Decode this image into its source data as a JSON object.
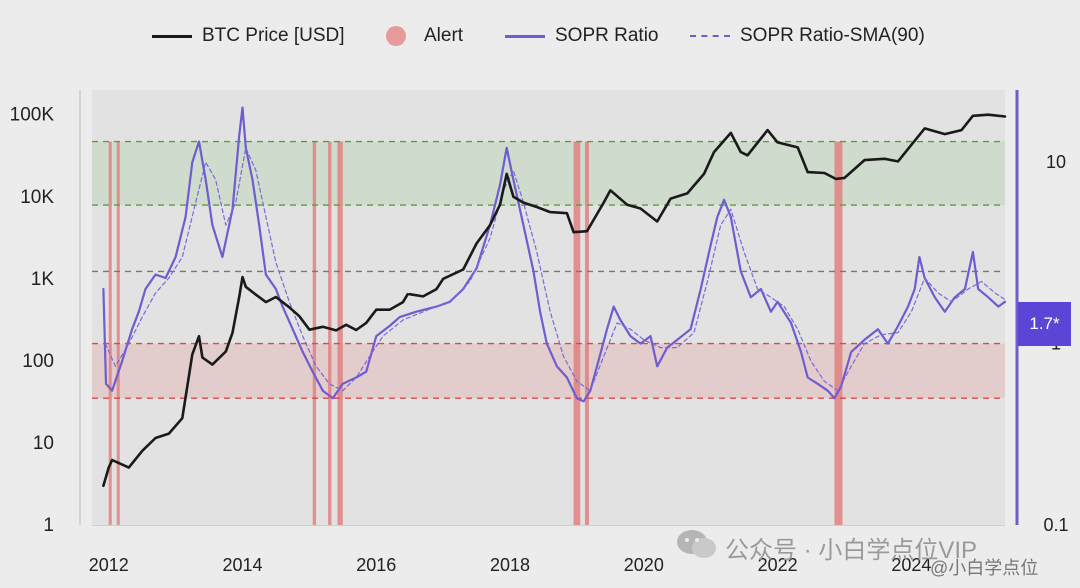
{
  "chart_data": {
    "type": "line",
    "legend": {
      "btc": "BTC Price [USD]",
      "alert": "Alert",
      "sopr": "SOPR Ratio",
      "sma": "SOPR Ratio-SMA(90)",
      "placement": "top"
    },
    "x_ticks": [
      "2012",
      "2014",
      "2016",
      "2018",
      "2020",
      "2022",
      "2024"
    ],
    "x_range": [
      2011.75,
      2025.4
    ],
    "y_left": {
      "scale": "log",
      "range": [
        1,
        200000
      ],
      "ticks": [
        1,
        10,
        100,
        1000,
        10000,
        100000
      ],
      "tick_labels": [
        "1",
        "10",
        "100",
        "1K",
        "10K",
        "100K"
      ]
    },
    "y_right": {
      "scale": "log",
      "range": [
        0.1,
        25
      ],
      "ticks": [
        0.1,
        1,
        10
      ],
      "tick_labels": [
        "0.1",
        "1",
        "10"
      ]
    },
    "reference_lines_right": [
      {
        "value": 13,
        "color": "green"
      },
      {
        "value": 5.8,
        "color": "green"
      },
      {
        "value": 2.5,
        "color": "gray"
      },
      {
        "value": 1.0,
        "color": "red"
      },
      {
        "value": 0.5,
        "color": "red"
      }
    ],
    "bands_right": [
      {
        "from": 5.8,
        "to": 13,
        "color": "green"
      },
      {
        "from": 0.5,
        "to": 1.0,
        "color": "red"
      }
    ],
    "current_value_label": "1.7*",
    "series": [
      {
        "name": "BTC Price [USD]",
        "axis": "left",
        "color": "#1a1a1a",
        "points": [
          [
            2011.92,
            3
          ],
          [
            2012.0,
            5
          ],
          [
            2012.05,
            6.2
          ],
          [
            2012.3,
            5
          ],
          [
            2012.5,
            8
          ],
          [
            2012.7,
            11.5
          ],
          [
            2012.9,
            13
          ],
          [
            2013.1,
            20
          ],
          [
            2013.25,
            120
          ],
          [
            2013.35,
            200
          ],
          [
            2013.4,
            110
          ],
          [
            2013.55,
            90
          ],
          [
            2013.75,
            130
          ],
          [
            2013.85,
            220
          ],
          [
            2013.95,
            600
          ],
          [
            2014.0,
            1050
          ],
          [
            2014.05,
            800
          ],
          [
            2014.2,
            640
          ],
          [
            2014.35,
            520
          ],
          [
            2014.5,
            600
          ],
          [
            2014.7,
            450
          ],
          [
            2014.85,
            350
          ],
          [
            2015.0,
            240
          ],
          [
            2015.2,
            260
          ],
          [
            2015.4,
            235
          ],
          [
            2015.55,
            275
          ],
          [
            2015.7,
            238
          ],
          [
            2015.85,
            290
          ],
          [
            2016.0,
            420
          ],
          [
            2016.2,
            420
          ],
          [
            2016.4,
            520
          ],
          [
            2016.47,
            650
          ]
        ]
      },
      {
        "name": "BTC Price [USD]",
        "axis": "left",
        "color": "#1a1a1a",
        "points": [
          [
            2016.5,
            650
          ],
          [
            2016.7,
            610
          ],
          [
            2016.9,
            750
          ],
          [
            2017.0,
            1000
          ],
          [
            2017.3,
            1300
          ],
          [
            2017.5,
            2700
          ],
          [
            2017.7,
            4500
          ],
          [
            2017.85,
            8000
          ],
          [
            2017.95,
            19000
          ],
          [
            2018.05,
            10000
          ],
          [
            2018.2,
            8500
          ],
          [
            2018.4,
            7500
          ],
          [
            2018.6,
            6500
          ],
          [
            2018.85,
            6300
          ],
          [
            2018.95,
            3700
          ],
          [
            2019.15,
            3800
          ],
          [
            2019.4,
            8500
          ],
          [
            2019.5,
            12000
          ],
          [
            2019.75,
            8000
          ],
          [
            2019.95,
            7200
          ],
          [
            2020.2,
            5000
          ],
          [
            2020.4,
            9500
          ],
          [
            2020.65,
            11000
          ],
          [
            2020.9,
            19000
          ],
          [
            2021.05,
            35000
          ],
          [
            2021.3,
            60000
          ],
          [
            2021.45,
            35000
          ],
          [
            2021.55,
            32000
          ],
          [
            2021.85,
            65000
          ],
          [
            2022.0,
            46000
          ],
          [
            2022.3,
            40000
          ],
          [
            2022.45,
            20000
          ],
          [
            2022.7,
            19500
          ],
          [
            2022.87,
            16500
          ],
          [
            2023.0,
            17000
          ],
          [
            2023.3,
            28000
          ],
          [
            2023.6,
            29000
          ],
          [
            2023.8,
            27000
          ],
          [
            2024.0,
            43000
          ],
          [
            2024.2,
            68000
          ],
          [
            2024.5,
            58000
          ],
          [
            2024.75,
            65000
          ],
          [
            2024.92,
            97000
          ],
          [
            2025.15,
            100000
          ],
          [
            2025.4,
            95000
          ]
        ]
      },
      {
        "name": "SOPR Ratio",
        "axis": "right",
        "color": "#6f5ccf",
        "points": [
          [
            2011.92,
            2.0
          ],
          [
            2011.96,
            0.6
          ],
          [
            2012.05,
            0.55
          ],
          [
            2012.2,
            0.8
          ],
          [
            2012.35,
            1.2
          ],
          [
            2012.45,
            1.5
          ],
          [
            2012.55,
            2.0
          ],
          [
            2012.7,
            2.4
          ],
          [
            2012.85,
            2.3
          ],
          [
            2013.0,
            3.0
          ],
          [
            2013.15,
            5
          ],
          [
            2013.25,
            10
          ],
          [
            2013.35,
            13
          ],
          [
            2013.45,
            8
          ],
          [
            2013.55,
            4.5
          ],
          [
            2013.7,
            3.0
          ],
          [
            2013.85,
            5.5
          ],
          [
            2013.95,
            14
          ],
          [
            2014.0,
            20
          ],
          [
            2014.05,
            12
          ],
          [
            2014.15,
            8
          ],
          [
            2014.25,
            4.5
          ],
          [
            2014.35,
            2.4
          ],
          [
            2014.5,
            2.0
          ],
          [
            2014.6,
            1.6
          ],
          [
            2014.75,
            1.2
          ],
          [
            2014.9,
            0.9
          ],
          [
            2015.05,
            0.7
          ],
          [
            2015.2,
            0.55
          ],
          [
            2015.35,
            0.5
          ],
          [
            2015.5,
            0.6
          ],
          [
            2015.7,
            0.65
          ],
          [
            2015.85,
            0.7
          ],
          [
            2016.0,
            1.1
          ],
          [
            2016.2,
            1.25
          ],
          [
            2016.35,
            1.4
          ],
          [
            2016.6,
            1.5
          ],
          [
            2016.9,
            1.6
          ],
          [
            2017.1,
            1.7
          ],
          [
            2017.3,
            2.0
          ],
          [
            2017.5,
            2.6
          ],
          [
            2017.7,
            4.5
          ],
          [
            2017.85,
            7.5
          ],
          [
            2017.95,
            12
          ],
          [
            2018.05,
            8
          ],
          [
            2018.2,
            4.5
          ],
          [
            2018.35,
            2.5
          ],
          [
            2018.45,
            1.5
          ],
          [
            2018.55,
            1.0
          ],
          [
            2018.7,
            0.75
          ],
          [
            2018.85,
            0.65
          ],
          [
            2019.0,
            0.5
          ],
          [
            2019.1,
            0.48
          ],
          [
            2019.2,
            0.55
          ],
          [
            2019.3,
            0.75
          ],
          [
            2019.45,
            1.2
          ],
          [
            2019.55,
            1.6
          ],
          [
            2019.65,
            1.35
          ],
          [
            2019.8,
            1.1
          ],
          [
            2019.95,
            1.0
          ],
          [
            2020.1,
            1.1
          ],
          [
            2020.2,
            0.75
          ],
          [
            2020.35,
            0.95
          ],
          [
            2020.5,
            1.05
          ],
          [
            2020.7,
            1.2
          ],
          [
            2020.85,
            2.0
          ],
          [
            2021.0,
            3.5
          ],
          [
            2021.1,
            5
          ],
          [
            2021.2,
            6.2
          ],
          [
            2021.3,
            5
          ],
          [
            2021.45,
            2.5
          ],
          [
            2021.6,
            1.8
          ],
          [
            2021.75,
            2.0
          ],
          [
            2021.9,
            1.5
          ],
          [
            2022.0,
            1.7
          ],
          [
            2022.2,
            1.3
          ],
          [
            2022.35,
            0.9
          ],
          [
            2022.45,
            0.65
          ],
          [
            2022.6,
            0.6
          ],
          [
            2022.75,
            0.55
          ],
          [
            2022.85,
            0.5
          ],
          [
            2022.95,
            0.58
          ],
          [
            2023.1,
            0.9
          ],
          [
            2023.3,
            1.05
          ],
          [
            2023.5,
            1.2
          ],
          [
            2023.65,
            1.0
          ],
          [
            2023.8,
            1.25
          ],
          [
            2023.95,
            1.6
          ],
          [
            2024.05,
            2.0
          ],
          [
            2024.12,
            3.0
          ],
          [
            2024.2,
            2.3
          ],
          [
            2024.35,
            1.8
          ],
          [
            2024.5,
            1.5
          ],
          [
            2024.65,
            1.8
          ],
          [
            2024.8,
            2.0
          ],
          [
            2024.92,
            3.2
          ],
          [
            2025.0,
            2.0
          ],
          [
            2025.15,
            1.8
          ],
          [
            2025.3,
            1.6
          ],
          [
            2025.4,
            1.7
          ]
        ]
      },
      {
        "name": "SOPR Ratio-SMA(90)",
        "axis": "right",
        "color": "#7a69d8",
        "points": [
          [
            2011.95,
            1.0
          ],
          [
            2012.1,
            0.75
          ],
          [
            2012.3,
            1.0
          ],
          [
            2012.5,
            1.4
          ],
          [
            2012.7,
            1.9
          ],
          [
            2012.9,
            2.3
          ],
          [
            2013.1,
            3.0
          ],
          [
            2013.3,
            6
          ],
          [
            2013.45,
            10
          ],
          [
            2013.6,
            8
          ],
          [
            2013.75,
            4.5
          ],
          [
            2013.9,
            6
          ],
          [
            2014.05,
            12
          ],
          [
            2014.2,
            9
          ],
          [
            2014.35,
            5
          ],
          [
            2014.5,
            2.8
          ],
          [
            2014.7,
            1.7
          ],
          [
            2014.9,
            1.1
          ],
          [
            2015.1,
            0.75
          ],
          [
            2015.3,
            0.6
          ],
          [
            2015.5,
            0.55
          ],
          [
            2015.7,
            0.65
          ],
          [
            2015.9,
            0.85
          ],
          [
            2016.1,
            1.1
          ],
          [
            2016.4,
            1.35
          ],
          [
            2016.8,
            1.55
          ],
          [
            2017.1,
            1.7
          ],
          [
            2017.4,
            2.2
          ],
          [
            2017.7,
            3.8
          ],
          [
            2017.9,
            7
          ],
          [
            2018.05,
            9
          ],
          [
            2018.2,
            6
          ],
          [
            2018.4,
            3.2
          ],
          [
            2018.6,
            1.5
          ],
          [
            2018.8,
            0.85
          ],
          [
            2019.0,
            0.62
          ],
          [
            2019.2,
            0.55
          ],
          [
            2019.4,
            0.85
          ],
          [
            2019.6,
            1.3
          ],
          [
            2019.8,
            1.2
          ],
          [
            2020.0,
            1.05
          ],
          [
            2020.25,
            0.95
          ],
          [
            2020.5,
            0.95
          ],
          [
            2020.75,
            1.15
          ],
          [
            2020.95,
            2.2
          ],
          [
            2021.15,
            4.5
          ],
          [
            2021.3,
            5.5
          ],
          [
            2021.5,
            3.2
          ],
          [
            2021.7,
            2.0
          ],
          [
            2021.9,
            1.8
          ],
          [
            2022.1,
            1.6
          ],
          [
            2022.3,
            1.2
          ],
          [
            2022.5,
            0.8
          ],
          [
            2022.7,
            0.62
          ],
          [
            2022.9,
            0.55
          ],
          [
            2023.1,
            0.75
          ],
          [
            2023.3,
            1.0
          ],
          [
            2023.55,
            1.12
          ],
          [
            2023.8,
            1.15
          ],
          [
            2024.0,
            1.5
          ],
          [
            2024.2,
            2.3
          ],
          [
            2024.4,
            1.9
          ],
          [
            2024.6,
            1.7
          ],
          [
            2024.85,
            2.0
          ],
          [
            2025.05,
            2.2
          ],
          [
            2025.25,
            1.9
          ],
          [
            2025.4,
            1.75
          ]
        ]
      }
    ],
    "alerts": [
      {
        "x": 2012.0,
        "width_years": 0.04
      },
      {
        "x": 2012.12,
        "width_years": 0.04
      },
      {
        "x": 2015.05,
        "width_years": 0.05
      },
      {
        "x": 2015.28,
        "width_years": 0.05
      },
      {
        "x": 2015.42,
        "width_years": 0.08
      },
      {
        "x": 2018.95,
        "width_years": 0.1
      },
      {
        "x": 2019.12,
        "width_years": 0.06
      },
      {
        "x": 2022.85,
        "width_years": 0.12
      }
    ]
  },
  "watermark": {
    "text_main": "公众号 · 小白学点位VIP",
    "text_corner": "@小白学点位"
  },
  "colors": {
    "btc": "#1a1a1a",
    "sopr": "#6f5ccf",
    "sma": "#7a69d8",
    "alert": "#e79a9a",
    "accent": "#5a45d6"
  }
}
